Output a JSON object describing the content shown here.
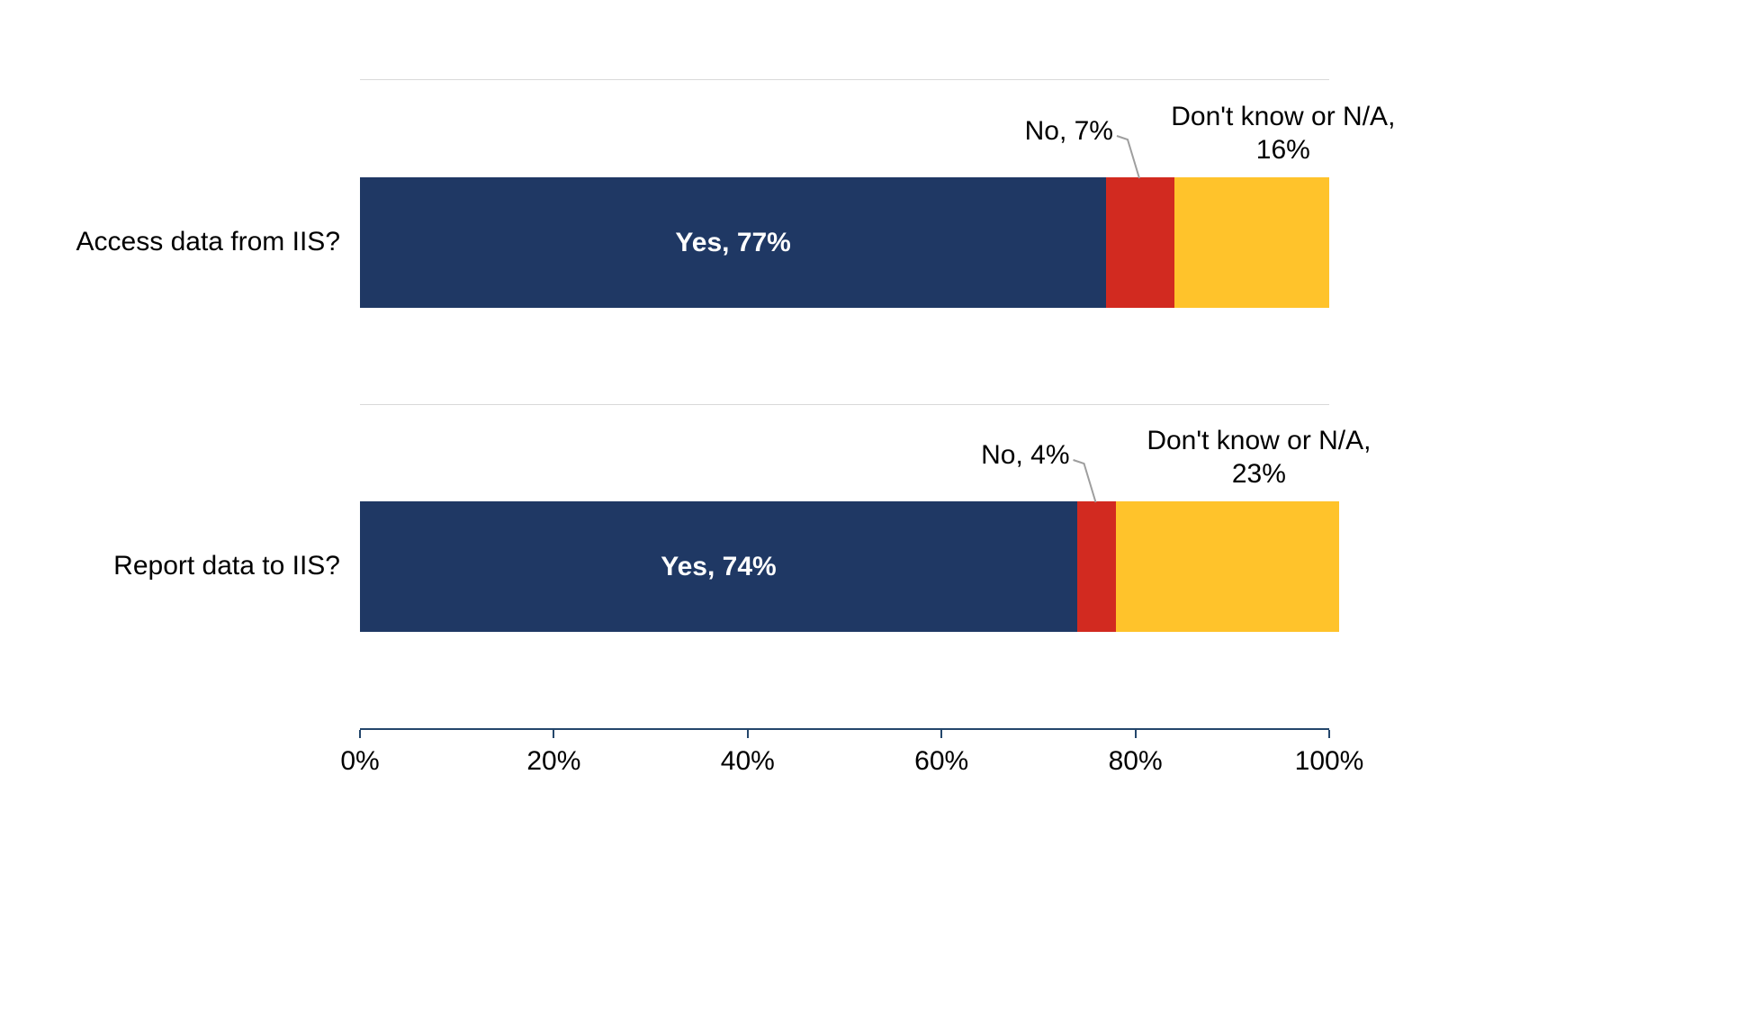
{
  "chart_data": {
    "type": "bar",
    "orientation": "horizontal",
    "stacked": true,
    "title": "",
    "categories": [
      "Access data from IIS?",
      "Report data to IIS?"
    ],
    "series": [
      {
        "name": "Yes",
        "values": [
          77,
          74
        ],
        "color": "#1F3864",
        "label_color": "#FFFFFF"
      },
      {
        "name": "No",
        "values": [
          7,
          4
        ],
        "color": "#D22A20"
      },
      {
        "name": "Don't know or N/A",
        "values": [
          16,
          23
        ],
        "color": "#FFC32B"
      }
    ],
    "xlim": [
      0,
      100
    ],
    "x_tick_labels": [
      "0%",
      "20%",
      "40%",
      "60%",
      "80%",
      "100%"
    ],
    "grid": false,
    "legend": "none",
    "data_labels": [
      {
        "yes": "Yes, 77%",
        "no": "No, 7%",
        "dk_line1": "Don't know or N/A,",
        "dk_line2": "16%"
      },
      {
        "yes": "Yes, 74%",
        "no": "No, 4%",
        "dk_line1": "Don't know or N/A,",
        "dk_line2": "23%"
      }
    ]
  },
  "styles": {
    "axis_line_color": "#24466B",
    "grid_line_color": "#D9D9D9",
    "leader_line_color": "#9E9E9E",
    "text_color": "#000000",
    "background": "#FFFFFF"
  }
}
